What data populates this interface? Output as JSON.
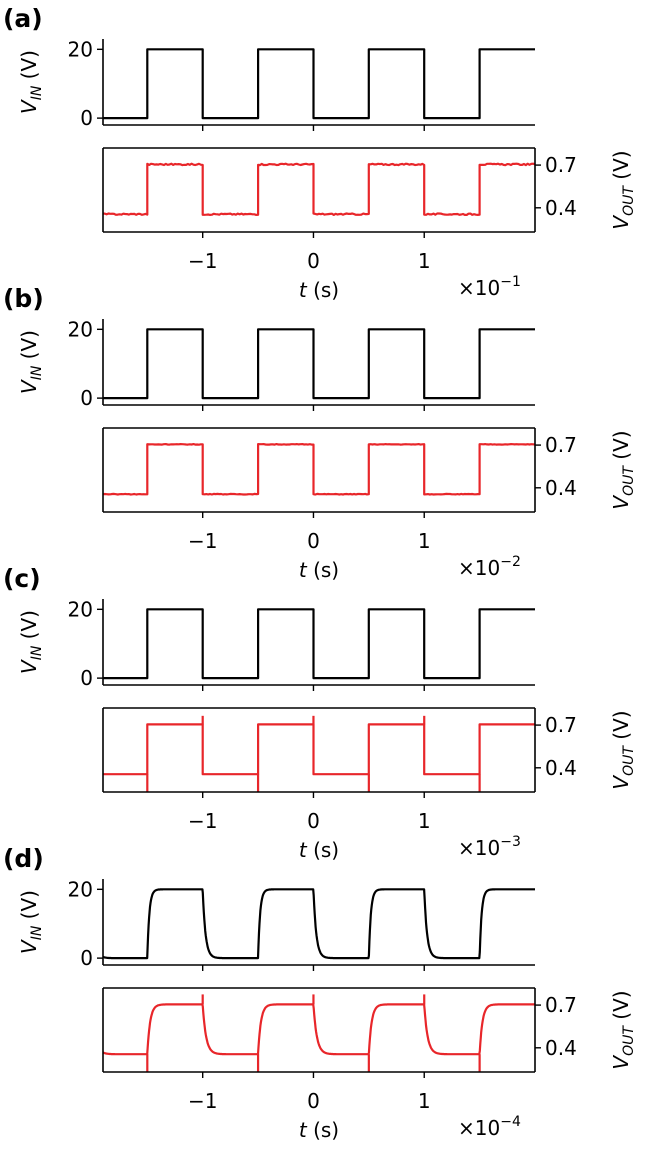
{
  "chart_data": [
    {
      "type": "line",
      "panel_label": "(a)",
      "xlabel": {
        "var": "t",
        "unit": " (s)"
      },
      "x_scale": {
        "base": "×10",
        "exp": "−1"
      },
      "xlim": [
        -1.9,
        2.0
      ],
      "xticks": [
        {
          "v": -1,
          "label": "−1"
        },
        {
          "v": 0,
          "label": "0"
        },
        {
          "v": 1,
          "label": "1"
        }
      ],
      "period": 1.0,
      "top": {
        "ylabel": {
          "var": "V",
          "sub": "IN",
          "unit": " (V)"
        },
        "ylim": [
          -2,
          23
        ],
        "yticks": [
          {
            "v": 0,
            "label": "0"
          },
          {
            "v": 20,
            "label": "20"
          }
        ],
        "series": [
          {
            "color": "#000000",
            "high": 20,
            "low": 0,
            "rise_tau": 0,
            "fall_tau": 0
          }
        ]
      },
      "bottom": {
        "ylabel": {
          "var": "V",
          "sub": "OUT",
          "unit": " (V)"
        },
        "ylim": [
          0.23,
          0.82
        ],
        "yticks": [
          {
            "v": 0.4,
            "label": "0.4"
          },
          {
            "v": 0.7,
            "label": "0.7"
          }
        ],
        "series": [
          {
            "color": "#e8262a",
            "high": 0.705,
            "low": 0.355,
            "rise_tau": 0,
            "fall_tau": 0,
            "spike": 0,
            "noise": 0.005
          }
        ]
      }
    },
    {
      "type": "line",
      "panel_label": "(b)",
      "xlabel": {
        "var": "t",
        "unit": " (s)"
      },
      "x_scale": {
        "base": "×10",
        "exp": "−2"
      },
      "xlim": [
        -1.9,
        2.0
      ],
      "xticks": [
        {
          "v": -1,
          "label": "−1"
        },
        {
          "v": 0,
          "label": "0"
        },
        {
          "v": 1,
          "label": "1"
        }
      ],
      "period": 1.0,
      "top": {
        "ylabel": {
          "var": "V",
          "sub": "IN",
          "unit": " (V)"
        },
        "ylim": [
          -2,
          23
        ],
        "yticks": [
          {
            "v": 0,
            "label": "0"
          },
          {
            "v": 20,
            "label": "20"
          }
        ],
        "series": [
          {
            "color": "#000000",
            "high": 20,
            "low": 0,
            "rise_tau": 0,
            "fall_tau": 0
          }
        ]
      },
      "bottom": {
        "ylabel": {
          "var": "V",
          "sub": "OUT",
          "unit": " (V)"
        },
        "ylim": [
          0.23,
          0.82
        ],
        "yticks": [
          {
            "v": 0.4,
            "label": "0.4"
          },
          {
            "v": 0.7,
            "label": "0.7"
          }
        ],
        "series": [
          {
            "color": "#e8262a",
            "high": 0.705,
            "low": 0.355,
            "rise_tau": 0,
            "fall_tau": 0,
            "spike": 0,
            "noise": 0.002
          }
        ]
      }
    },
    {
      "type": "line",
      "panel_label": "(c)",
      "xlabel": {
        "var": "t",
        "unit": " (s)"
      },
      "x_scale": {
        "base": "×10",
        "exp": "−3"
      },
      "xlim": [
        -1.9,
        2.0
      ],
      "xticks": [
        {
          "v": -1,
          "label": "−1"
        },
        {
          "v": 0,
          "label": "0"
        },
        {
          "v": 1,
          "label": "1"
        }
      ],
      "period": 1.0,
      "top": {
        "ylabel": {
          "var": "V",
          "sub": "IN",
          "unit": " (V)"
        },
        "ylim": [
          -2,
          23
        ],
        "yticks": [
          {
            "v": 0,
            "label": "0"
          },
          {
            "v": 20,
            "label": "20"
          }
        ],
        "series": [
          {
            "color": "#000000",
            "high": 20,
            "low": 0,
            "rise_tau": 0,
            "fall_tau": 0
          }
        ]
      },
      "bottom": {
        "ylabel": {
          "var": "V",
          "sub": "OUT",
          "unit": " (V)"
        },
        "ylim": [
          0.23,
          0.82
        ],
        "yticks": [
          {
            "v": 0.4,
            "label": "0.4"
          },
          {
            "v": 0.7,
            "label": "0.7"
          }
        ],
        "series": [
          {
            "color": "#e8262a",
            "high": 0.705,
            "low": 0.355,
            "rise_tau": 0,
            "fall_tau": 0,
            "spike": 0.06,
            "noise": 0.0
          }
        ]
      }
    },
    {
      "type": "line",
      "panel_label": "(d)",
      "xlabel": {
        "var": "t",
        "unit": " (s)"
      },
      "x_scale": {
        "base": "×10",
        "exp": "−4"
      },
      "xlim": [
        -1.9,
        2.0
      ],
      "xticks": [
        {
          "v": -1,
          "label": "−1"
        },
        {
          "v": 0,
          "label": "0"
        },
        {
          "v": 1,
          "label": "1"
        }
      ],
      "period": 1.0,
      "top": {
        "ylabel": {
          "var": "V",
          "sub": "IN",
          "unit": " (V)"
        },
        "ylim": [
          -2,
          23
        ],
        "yticks": [
          {
            "v": 0,
            "label": "0"
          },
          {
            "v": 20,
            "label": "20"
          }
        ],
        "series": [
          {
            "color": "#000000",
            "high": 20,
            "low": 0,
            "rise_tau": 0.018,
            "fall_tau": 0.025
          }
        ]
      },
      "bottom": {
        "ylabel": {
          "var": "V",
          "sub": "OUT",
          "unit": " (V)"
        },
        "ylim": [
          0.23,
          0.82
        ],
        "yticks": [
          {
            "v": 0.4,
            "label": "0.4"
          },
          {
            "v": 0.7,
            "label": "0.7"
          }
        ],
        "series": [
          {
            "color": "#e8262a",
            "high": 0.705,
            "low": 0.355,
            "rise_tau": 0.025,
            "fall_tau": 0.03,
            "spike": 0.07,
            "noise": 0.0
          }
        ]
      }
    }
  ]
}
